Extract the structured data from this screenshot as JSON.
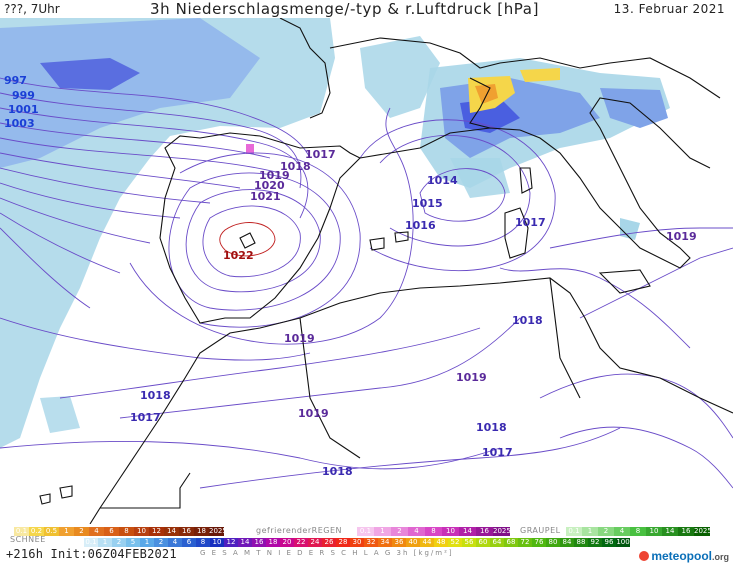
{
  "header": {
    "left": "???, 7Uhr",
    "title": "3h Niederschlagsmenge/-typ & r.Luftdruck [hPa]",
    "date": "13. Februar 2021"
  },
  "isobar_labels": [
    {
      "text": "997",
      "color": "#1a3fd6"
    },
    {
      "text": "999",
      "color": "#1a3fd6"
    },
    {
      "text": "1001",
      "color": "#1a3fd6"
    },
    {
      "text": "1003",
      "color": "#1a3fd6"
    },
    {
      "text": "1017",
      "color": "#5a2a9a"
    },
    {
      "text": "1018",
      "color": "#5a2a9a"
    },
    {
      "text": "1019",
      "color": "#5a2a9a"
    },
    {
      "text": "1020",
      "color": "#5a2a9a"
    },
    {
      "text": "1021",
      "color": "#5a2a9a"
    },
    {
      "text": "1022",
      "color": "#a01010"
    },
    {
      "text": "1014",
      "color": "#3a2ab0"
    },
    {
      "text": "1015",
      "color": "#3a2ab0"
    },
    {
      "text": "1016",
      "color": "#3a2ab0"
    },
    {
      "text": "1017",
      "color": "#3a2ab0"
    },
    {
      "text": "1019",
      "color": "#5a2a9a"
    },
    {
      "text": "1019",
      "color": "#5a2a9a"
    },
    {
      "text": "1018",
      "color": "#3a2ab0"
    },
    {
      "text": "1019",
      "color": "#5a2a9a"
    },
    {
      "text": "1019",
      "color": "#5a2a9a"
    },
    {
      "text": "1018",
      "color": "#3a2ab0"
    },
    {
      "text": "1017",
      "color": "#3a2ab0"
    },
    {
      "text": "1018",
      "color": "#3a2ab0"
    },
    {
      "text": "1017",
      "color": "#3a2ab0"
    },
    {
      "text": "1018",
      "color": "#3a2ab0"
    }
  ],
  "legend": {
    "snow_title": "SCHNEE",
    "freezing_title": "gefrierenderREGEN",
    "graupel_title": "GRAUPEL",
    "precip_title": "G E S A M T N I E D E R S C H L A G   3h  [kg/m²]",
    "mixed_values": [
      "0.1",
      "0.2",
      "0.5",
      "1",
      "2",
      "4",
      "6",
      "8",
      "10",
      "12",
      "14",
      "16",
      "18",
      "2025+"
    ],
    "freezing_values": [
      "0.1",
      "1",
      "2",
      "4",
      "8",
      "10",
      "14",
      "16",
      "2025+"
    ],
    "graupel_values": [
      "0.1",
      "1",
      "2",
      "4",
      "8",
      "10",
      "14",
      "16",
      "2025+"
    ],
    "snow_values": [
      "0.1",
      "1",
      "2",
      "5",
      "1",
      "2",
      "4",
      "6",
      "8",
      "10",
      "12",
      "14",
      "16",
      "18",
      "20",
      "22",
      "24",
      "26",
      "28",
      "30",
      "32",
      "34",
      "36",
      "40",
      "44",
      "48",
      "52",
      "56",
      "60",
      "64",
      "68",
      "72",
      "76",
      "80",
      "84",
      "88",
      "92",
      "96",
      "100"
    ]
  },
  "footer": {
    "run": "+216h Init:06Z04FEB2021",
    "brand": "meteopool",
    "brand_suffix": ".org"
  },
  "colors": {
    "precip_light": "#a8d6e8",
    "precip_mid": "#7fa3e8",
    "precip_heavy": "#4a5fe0",
    "snow_yellow": "#f5d64a",
    "snow_orange": "#f0a030",
    "isobar": "#6a4cc8",
    "coast": "#111111"
  }
}
